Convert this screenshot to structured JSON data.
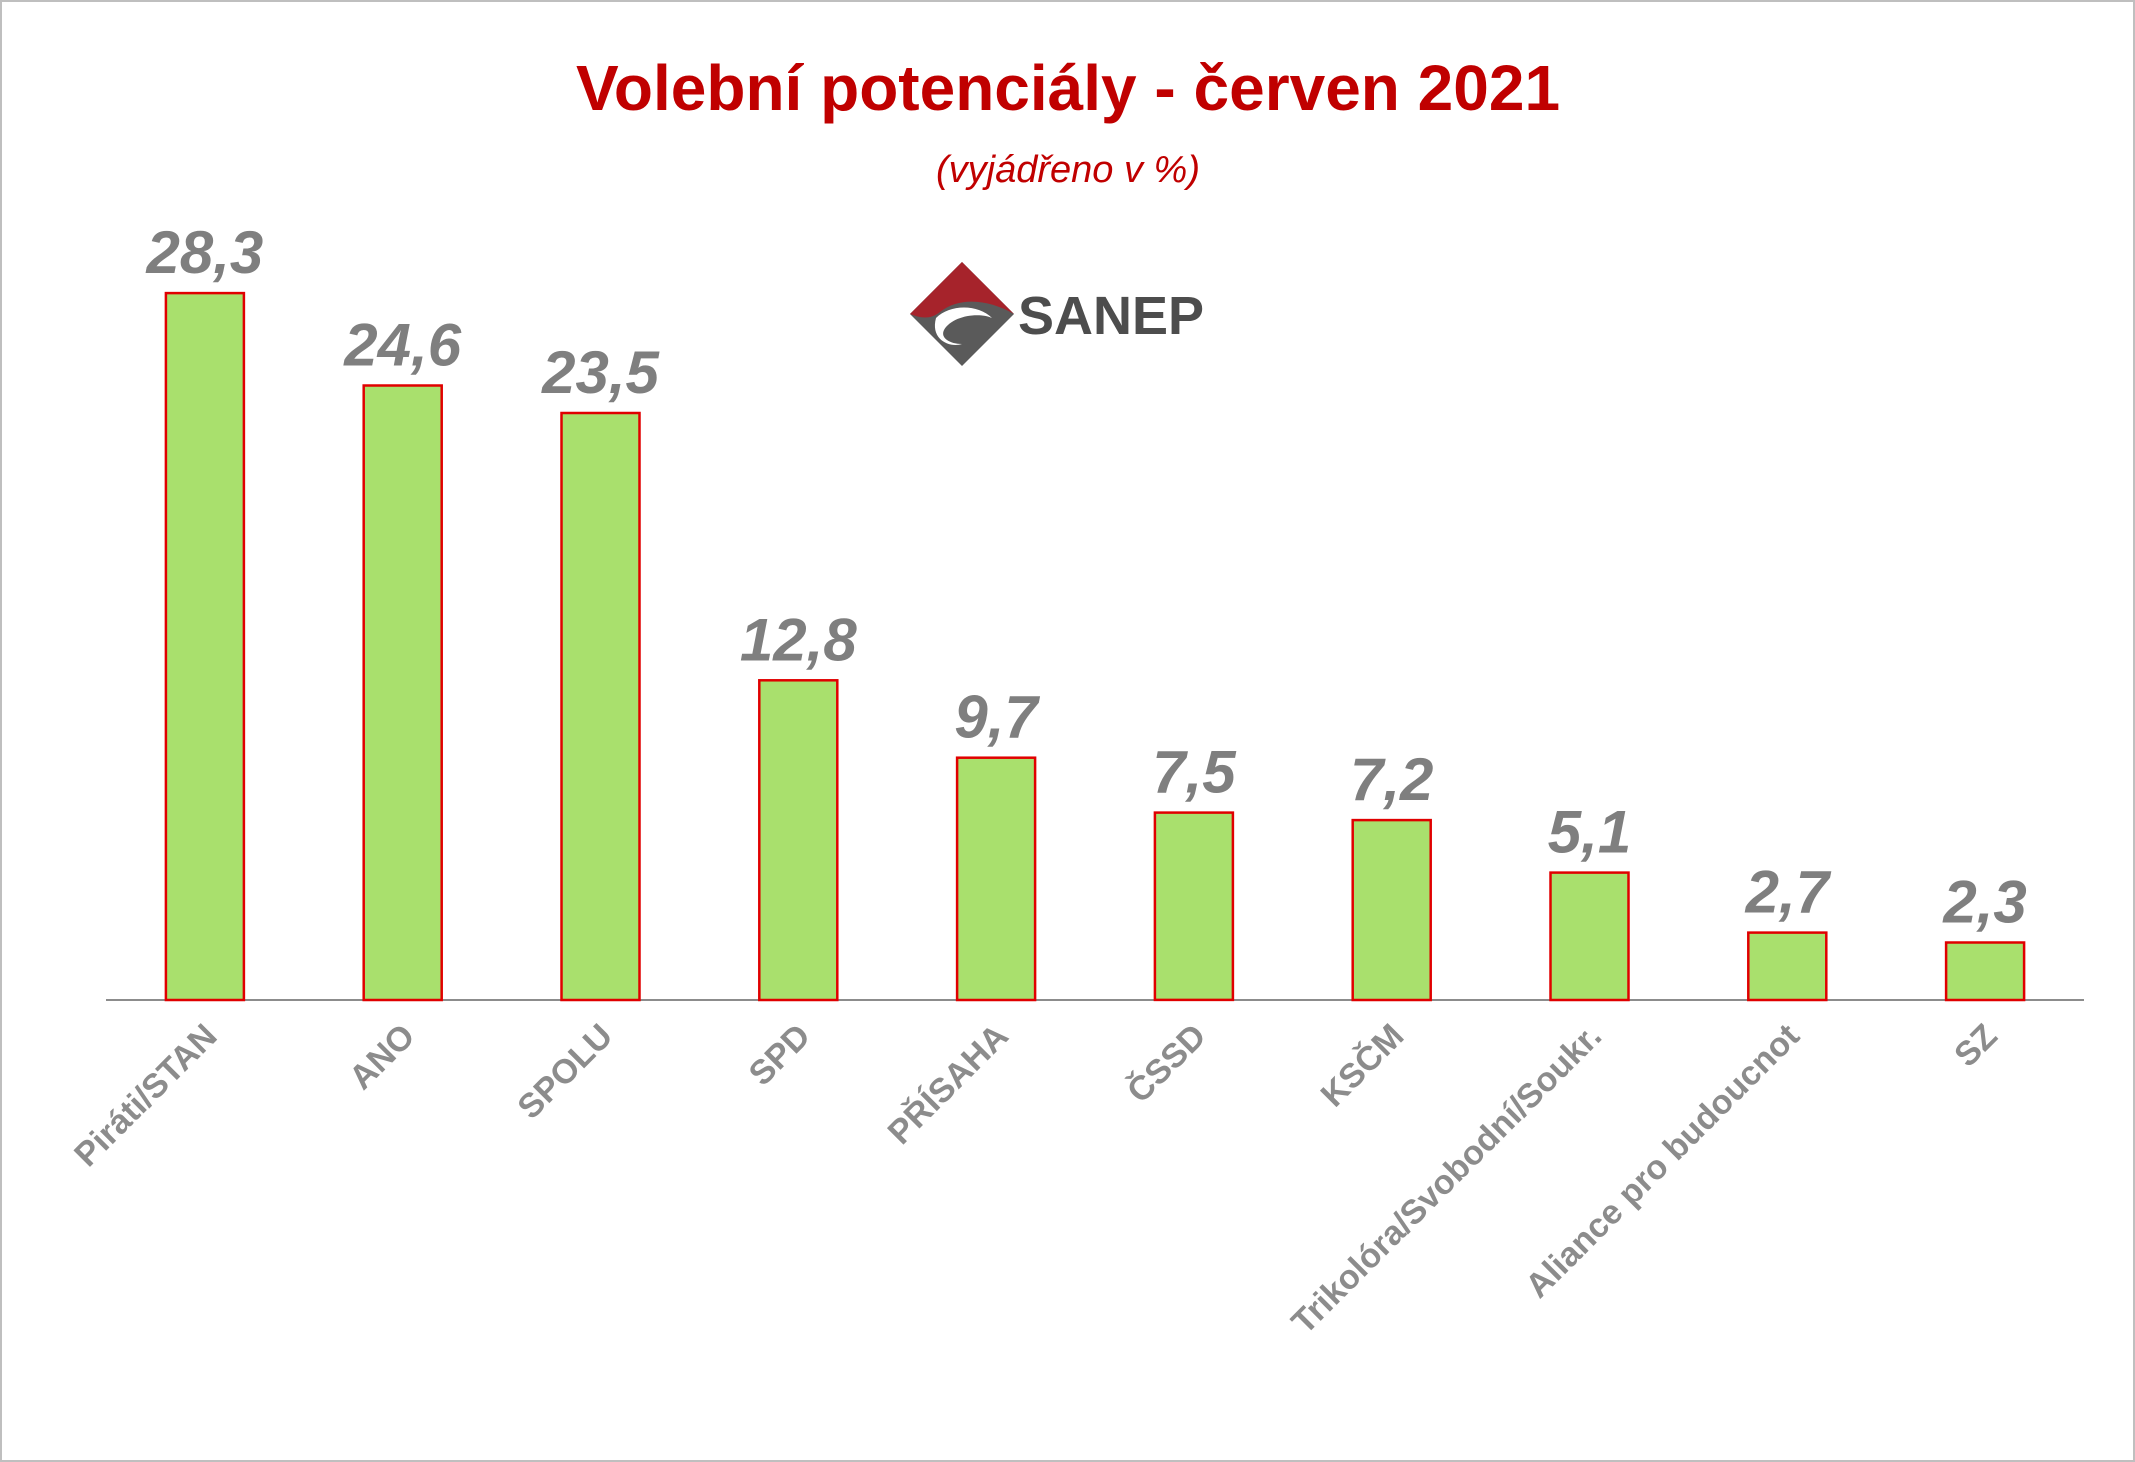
{
  "chart_data": {
    "type": "bar",
    "title": "Volební potenciály - červen 2021",
    "subtitle": "(vyjádřeno v %)",
    "categories": [
      "Piráti/STAN",
      "ANO",
      "SPOLU",
      "SPD",
      "PŘÍSAHA",
      "ČSSD",
      "KSČM",
      "Trikolóra/Svobodní/Soukr.",
      "Aliance pro budoucnot",
      "SZ"
    ],
    "values": [
      28.3,
      24.6,
      23.5,
      12.8,
      9.7,
      7.5,
      7.2,
      5.1,
      2.7,
      2.3
    ],
    "value_labels": [
      "28,3",
      "24,6",
      "23,5",
      "12,8",
      "9,7",
      "7,5",
      "7,2",
      "5,1",
      "2,7",
      "2,3"
    ],
    "ylim": [
      0,
      30
    ],
    "grid": false,
    "legend": "none",
    "colors": {
      "bar_fill": "#a9e06d",
      "bar_stroke": "#e00000",
      "title": "#c00000",
      "value_label": "#7f7f7f",
      "category_label": "#8c8c8c",
      "axis": "#8c8c8c"
    }
  },
  "logo": {
    "text": "SANEP",
    "icon": "sanep-diamond-logo-icon"
  }
}
